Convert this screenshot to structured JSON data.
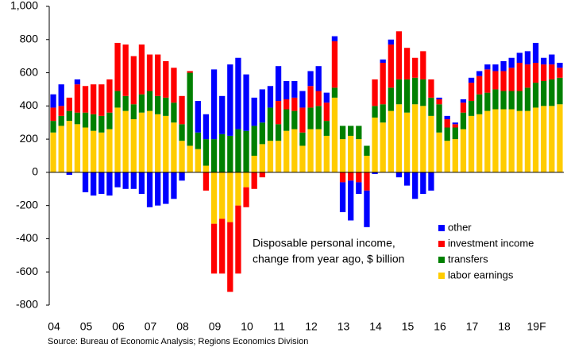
{
  "chart_data": {
    "type": "stacked_bar",
    "annotation": [
      "Disposable personal income,",
      "change from year ago, $ billion"
    ],
    "source": "Source: Bureau of Economic Analysis; Regions Economics Division",
    "categories": [
      "04",
      null,
      null,
      null,
      "05",
      null,
      null,
      null,
      "06",
      null,
      null,
      null,
      "07",
      null,
      null,
      null,
      "08",
      null,
      null,
      null,
      "09",
      null,
      null,
      null,
      "10",
      null,
      null,
      null,
      "11",
      null,
      null,
      null,
      "12",
      null,
      null,
      null,
      "13",
      null,
      null,
      null,
      "14",
      null,
      null,
      null,
      "15",
      null,
      null,
      null,
      "16",
      null,
      null,
      null,
      "17",
      null,
      null,
      null,
      "18",
      null,
      null,
      null,
      "19F",
      null,
      null,
      null
    ],
    "series": [
      {
        "name": "labor earnings",
        "color": "#ffcc00",
        "values": [
          240,
          280,
          310,
          290,
          270,
          250,
          240,
          260,
          390,
          370,
          320,
          360,
          370,
          350,
          340,
          300,
          190,
          160,
          140,
          40,
          -310,
          -280,
          -300,
          -200,
          -90,
          100,
          170,
          190,
          190,
          250,
          260,
          160,
          260,
          260,
          220,
          450,
          200,
          220,
          200,
          100,
          330,
          300,
          370,
          410,
          360,
          410,
          400,
          340,
          240,
          190,
          200,
          260,
          340,
          350,
          370,
          380,
          380,
          380,
          370,
          370,
          390,
          400,
          400,
          410
        ]
      },
      {
        "name": "transfers",
        "color": "#008000",
        "values": [
          70,
          60,
          60,
          70,
          90,
          100,
          100,
          100,
          100,
          90,
          90,
          110,
          120,
          110,
          110,
          120,
          100,
          440,
          100,
          160,
          200,
          230,
          220,
          260,
          250,
          180,
          130,
          200,
          100,
          130,
          110,
          80,
          130,
          140,
          90,
          60,
          80,
          60,
          80,
          60,
          70,
          110,
          140,
          150,
          200,
          160,
          160,
          110,
          170,
          80,
          70,
          100,
          90,
          120,
          110,
          120,
          110,
          110,
          120,
          140,
          150,
          150,
          160,
          160
        ]
      },
      {
        "name": "investment income",
        "color": "#ff0000",
        "values": [
          80,
          60,
          80,
          170,
          160,
          180,
          190,
          200,
          290,
          310,
          290,
          300,
          220,
          250,
          220,
          210,
          170,
          10,
          0,
          -110,
          -300,
          -330,
          -420,
          -410,
          -120,
          -100,
          -30,
          0,
          140,
          60,
          80,
          150,
          130,
          90,
          110,
          280,
          -60,
          -50,
          -60,
          -110,
          160,
          250,
          260,
          290,
          190,
          120,
          170,
          110,
          30,
          50,
          20,
          60,
          110,
          110,
          140,
          110,
          120,
          140,
          170,
          140,
          120,
          100,
          90,
          60
        ]
      },
      {
        "name": "other",
        "color": "#0000ff",
        "values": [
          80,
          130,
          -15,
          30,
          -120,
          -140,
          -130,
          -140,
          -90,
          -100,
          -100,
          -130,
          -210,
          -200,
          -190,
          -160,
          -50,
          0,
          190,
          150,
          420,
          230,
          430,
          430,
          340,
          170,
          200,
          130,
          210,
          110,
          100,
          100,
          90,
          150,
          60,
          30,
          -180,
          -240,
          -70,
          -220,
          -10,
          20,
          30,
          -30,
          -80,
          -160,
          -130,
          -110,
          10,
          20,
          10,
          20,
          30,
          30,
          30,
          40,
          60,
          60,
          60,
          80,
          120,
          40,
          60,
          30
        ]
      }
    ],
    "ylim": [
      -800,
      1000
    ],
    "yticks": [
      -800,
      -600,
      -400,
      -200,
      0,
      200,
      400,
      600,
      800,
      {
        "value": 1000,
        "label": "1,000"
      }
    ],
    "legend": "lower right"
  }
}
